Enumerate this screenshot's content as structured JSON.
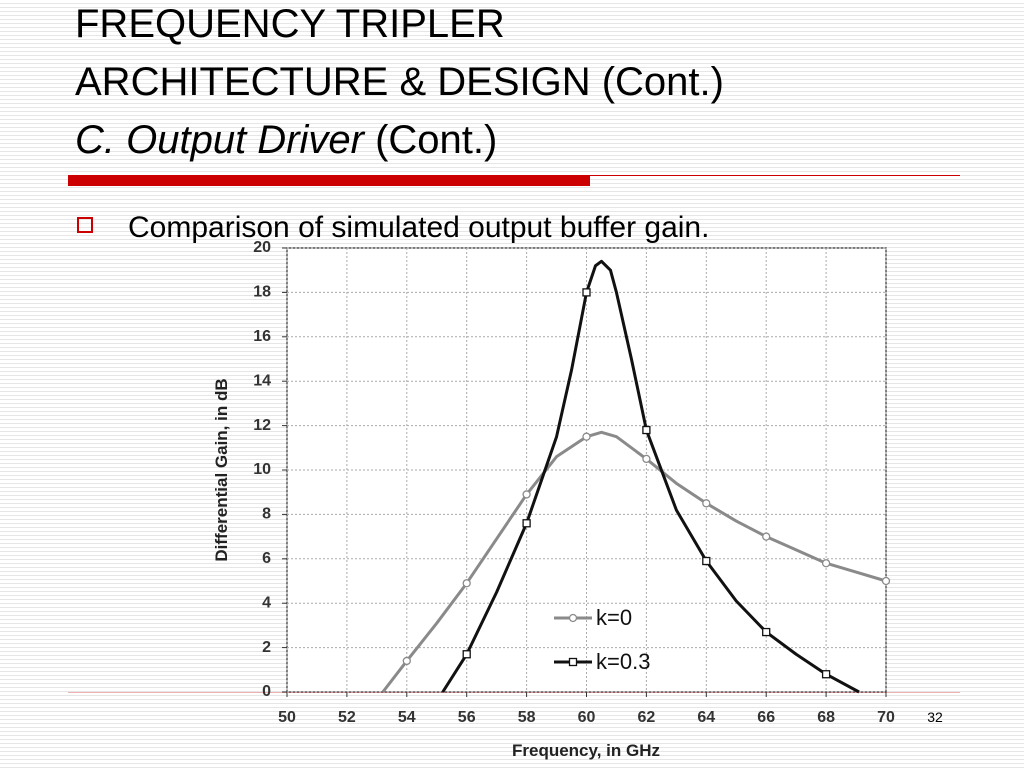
{
  "slide": {
    "title_lines": [
      "FREQUENCY TRIPLER",
      "ARCHITECTURE & DESIGN (Cont.)"
    ],
    "subtitle_italic": "C. Output Driver",
    "subtitle_rest": "(Cont.)",
    "bullet": "Comparison of simulated output buffer gain.",
    "page_number": "32"
  },
  "chart_data": {
    "type": "line",
    "x_label": "Frequency, in GHz",
    "y_label": "Differential Gain, in dB",
    "xlim": [
      50,
      70
    ],
    "xticks": [
      50,
      52,
      54,
      56,
      58,
      60,
      62,
      64,
      66,
      68,
      70
    ],
    "ylim": [
      0,
      20
    ],
    "yticks": [
      0,
      2,
      4,
      6,
      8,
      10,
      12,
      14,
      16,
      18,
      20
    ],
    "grid": true,
    "legend": "lower right",
    "series": [
      {
        "name": "k=0",
        "color": "#8a8a8a",
        "marker": "circle",
        "x": [
          53.2,
          54,
          55,
          56,
          57,
          58,
          59,
          60,
          60.5,
          61,
          62,
          63,
          64,
          65,
          66,
          67,
          68,
          69,
          70
        ],
        "values": [
          0,
          1.4,
          3.1,
          4.9,
          6.9,
          8.9,
          10.6,
          11.5,
          11.7,
          11.5,
          10.5,
          9.4,
          8.5,
          7.7,
          7.0,
          6.4,
          5.8,
          5.4,
          5.0
        ]
      },
      {
        "name": "k=0.3",
        "color": "#111111",
        "marker": "square",
        "x": [
          55.2,
          56,
          57,
          58,
          59,
          59.5,
          60,
          60.3,
          60.5,
          60.8,
          61,
          61.5,
          62,
          63,
          64,
          65,
          66,
          67,
          68,
          69.1
        ],
        "values": [
          0,
          1.7,
          4.5,
          7.6,
          11.5,
          14.5,
          18,
          19.2,
          19.4,
          19,
          18,
          15,
          11.8,
          8.2,
          5.9,
          4.1,
          2.7,
          1.7,
          0.8,
          0
        ]
      }
    ]
  }
}
